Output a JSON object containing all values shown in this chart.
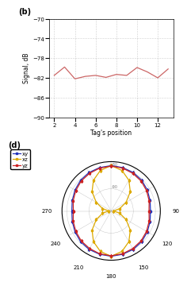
{
  "b_x": [
    2,
    3,
    4,
    5,
    6,
    7,
    8,
    9,
    10,
    11,
    12,
    13
  ],
  "b_y": [
    -81.5,
    -79.8,
    -82.2,
    -81.7,
    -81.5,
    -81.9,
    -81.3,
    -81.5,
    -79.9,
    -80.8,
    -82.0,
    -80.2
  ],
  "b_xlabel": "Tag's position",
  "b_ylabel": "Signal, dB",
  "b_ylim": [
    -90,
    -70
  ],
  "b_yticks": [
    -90,
    -86,
    -82,
    -78,
    -74,
    -70
  ],
  "b_xticks": [
    2,
    4,
    6,
    8,
    10,
    12
  ],
  "b_label": "(b)",
  "b_line_color": "#cc6666",
  "polar_angles_deg": [
    0,
    15,
    30,
    45,
    60,
    75,
    90,
    105,
    120,
    135,
    150,
    165,
    180,
    195,
    210,
    225,
    240,
    255,
    270,
    285,
    300,
    315,
    330,
    345
  ],
  "xy_r": [
    92,
    91,
    90,
    88,
    85,
    82,
    80,
    82,
    85,
    88,
    90,
    91,
    92,
    91,
    90,
    88,
    85,
    82,
    80,
    82,
    85,
    88,
    90,
    91
  ],
  "xz_r": [
    92,
    85,
    72,
    55,
    35,
    18,
    5,
    18,
    35,
    55,
    72,
    85,
    92,
    85,
    72,
    55,
    35,
    18,
    5,
    18,
    35,
    55,
    72,
    85
  ],
  "yz_r": [
    91,
    90,
    88,
    86,
    83,
    80,
    77,
    80,
    83,
    86,
    88,
    90,
    91,
    90,
    88,
    86,
    83,
    80,
    77,
    80,
    83,
    86,
    88,
    90
  ],
  "xy_color": "#2233bb",
  "xz_color": "#ddaa00",
  "yz_color": "#cc2222",
  "d_label": "(d)",
  "legend_labels": [
    "xy",
    "xz",
    "yz"
  ]
}
